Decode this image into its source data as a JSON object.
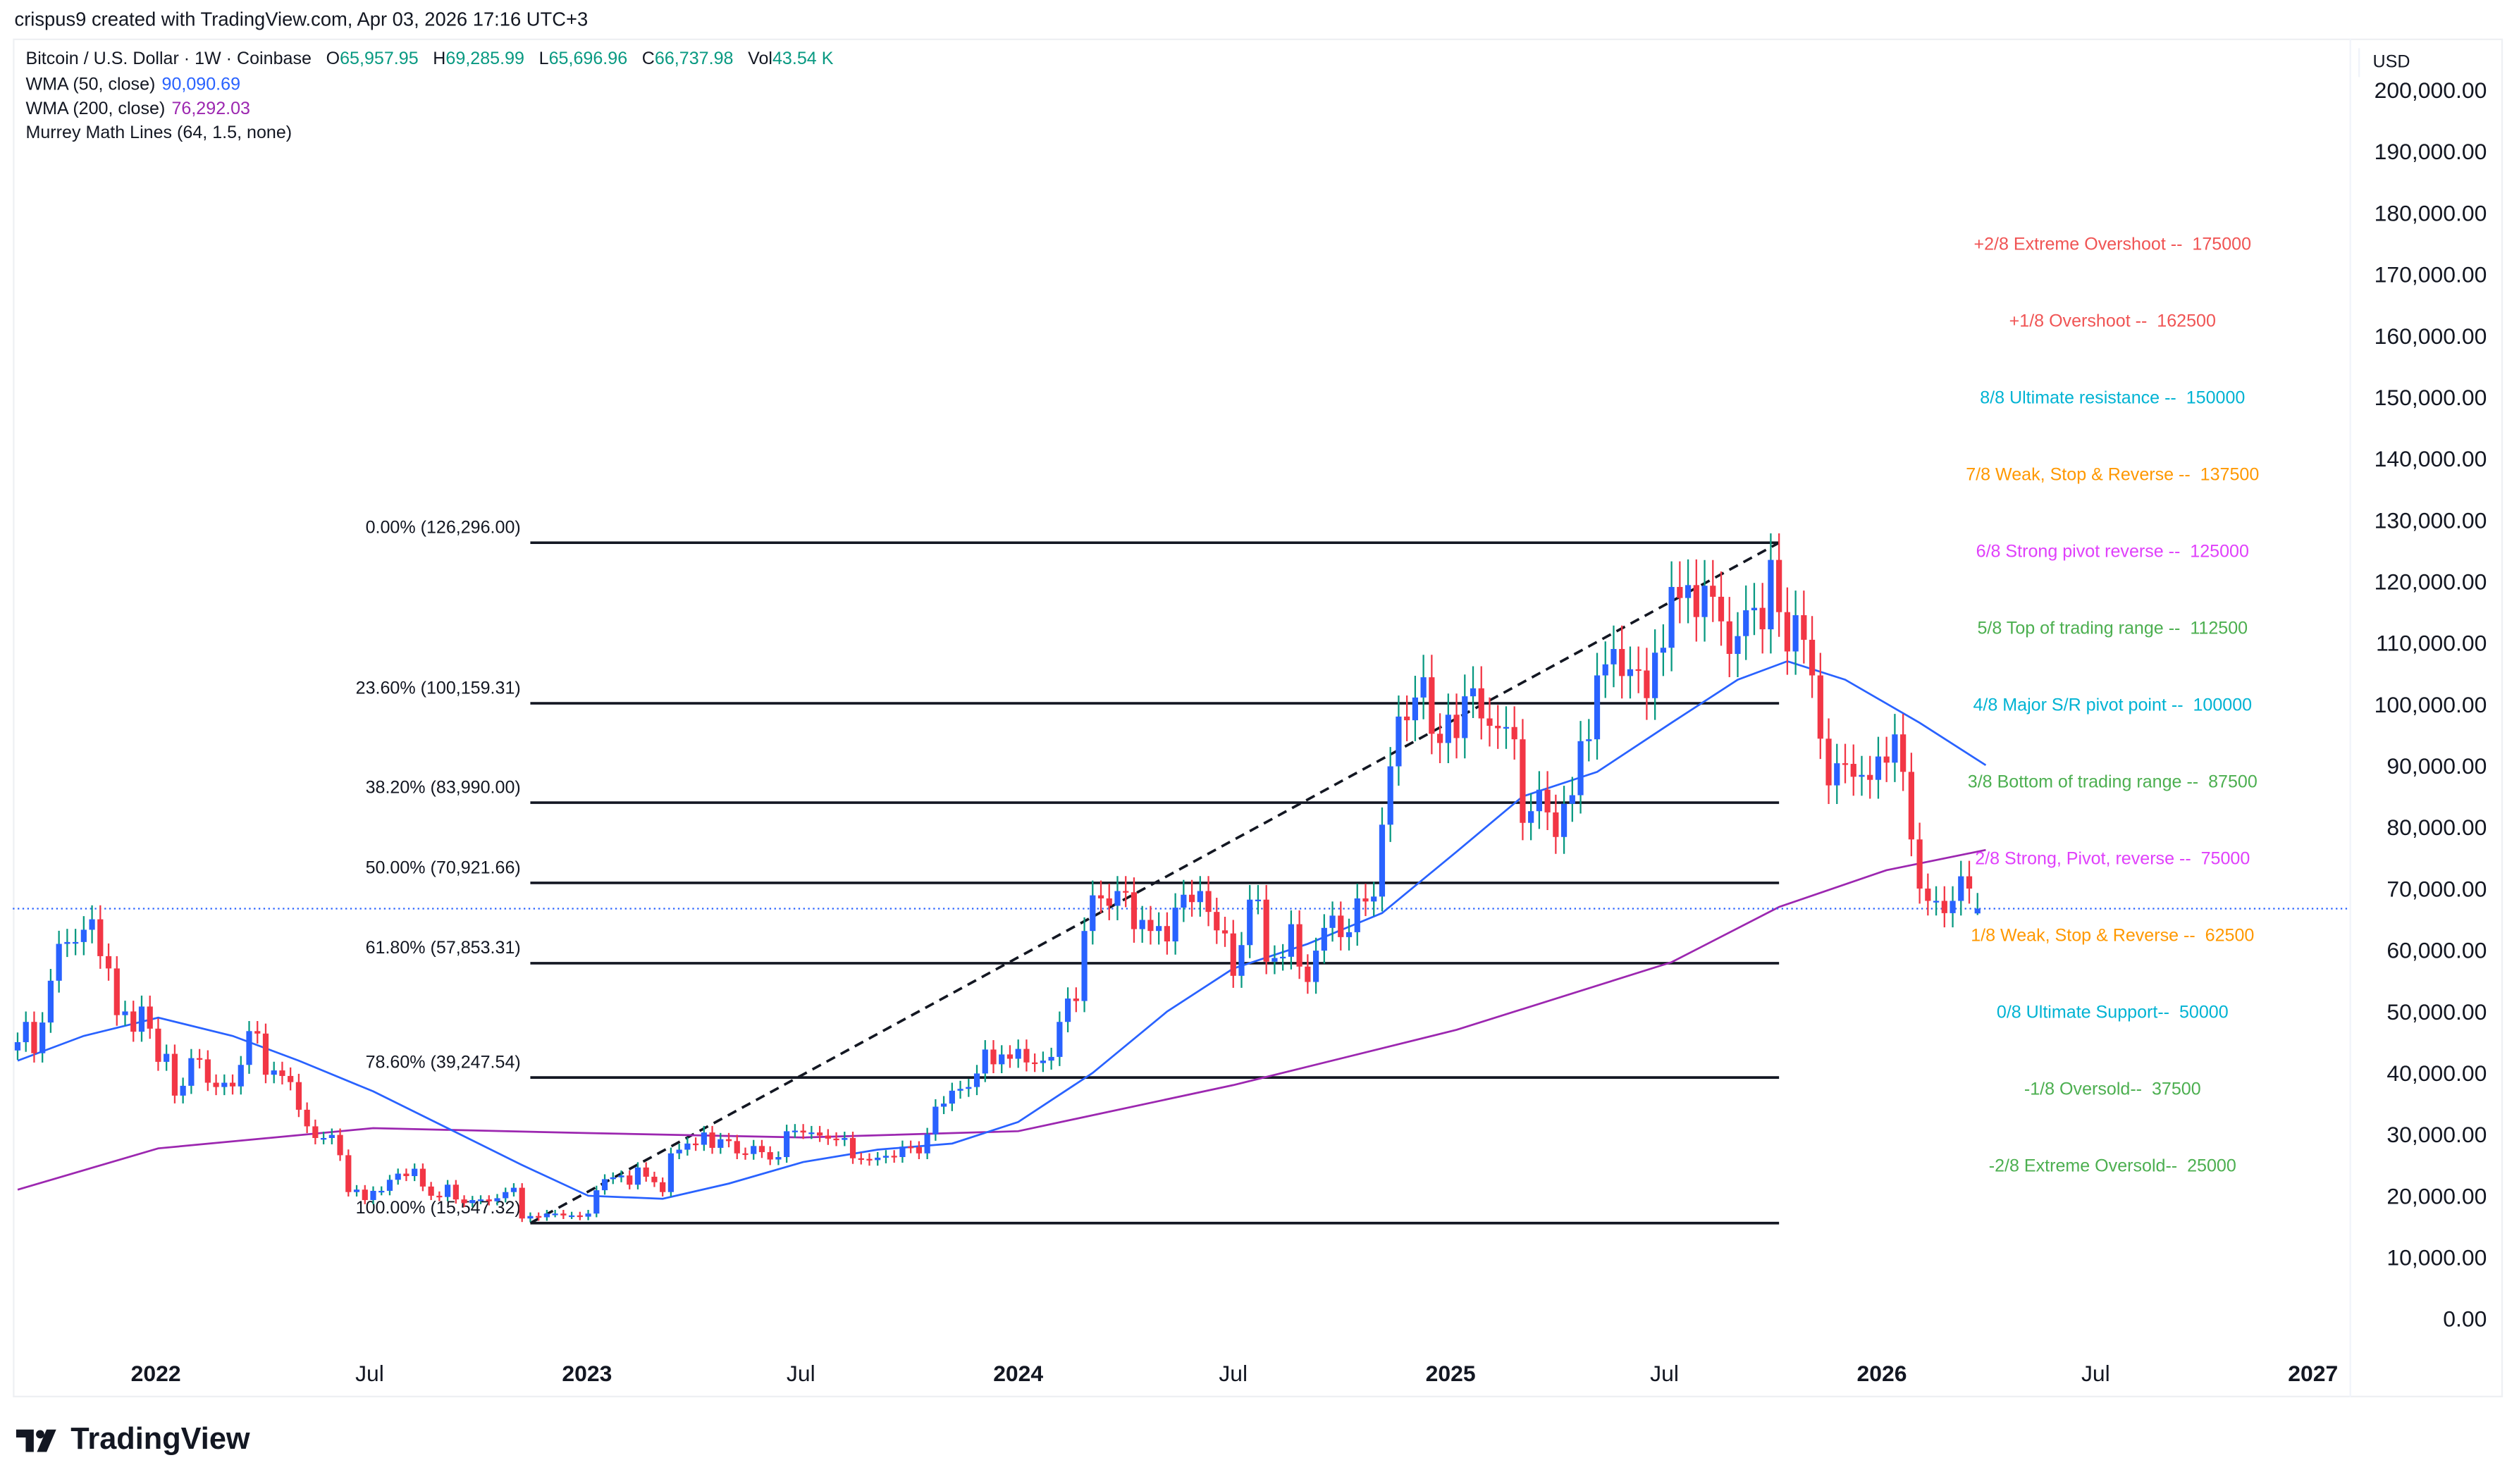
{
  "credit": "crispus9 created with TradingView.com, Apr 03, 2026 17:16 UTC+3",
  "legend": {
    "symbol": "Bitcoin / U.S. Dollar · 1W · Coinbase",
    "open_label": "O",
    "open": "65,957.95",
    "high_label": "H",
    "high": "69,285.99",
    "low_label": "L",
    "low": "65,696.96",
    "close_label": "C",
    "close": "66,737.98",
    "vol_label": "Vol",
    "vol": "43.54 K",
    "wma50_name": "WMA (50, close)",
    "wma50_value": "90,090.69",
    "wma200_name": "WMA (200, close)",
    "wma200_value": "76,292.03",
    "murrey_name": "Murrey Math Lines (64, 1.5, none)"
  },
  "currency": "USD",
  "logo_text": "TradingView",
  "colors": {
    "up": "#2962ff",
    "up_wick": "#089981",
    "down": "#f23645",
    "wma50": "#2962ff",
    "wma200": "#9c27b0",
    "price_line": "#2962ff"
  },
  "chart_data": {
    "type": "candlestick",
    "interval": "1W",
    "ylim": [
      0,
      200000
    ],
    "y_ticks": [
      "200,000.00",
      "190,000.00",
      "180,000.00",
      "170,000.00",
      "160,000.00",
      "150,000.00",
      "140,000.00",
      "130,000.00",
      "120,000.00",
      "110,000.00",
      "100,000.00",
      "90,000.00",
      "80,000.00",
      "70,000.00",
      "60,000.00",
      "50,000.00",
      "40,000.00",
      "30,000.00",
      "20,000.00",
      "10,000.00",
      "0.00"
    ],
    "x_ticks": [
      {
        "label": "2022",
        "date": "2022-01-01",
        "year": true
      },
      {
        "label": "Jul",
        "date": "2022-07-01"
      },
      {
        "label": "2023",
        "date": "2023-01-01",
        "year": true
      },
      {
        "label": "Jul",
        "date": "2023-07-01"
      },
      {
        "label": "2024",
        "date": "2024-01-01",
        "year": true
      },
      {
        "label": "Jul",
        "date": "2024-07-01"
      },
      {
        "label": "2025",
        "date": "2025-01-01",
        "year": true
      },
      {
        "label": "Jul",
        "date": "2025-07-01"
      },
      {
        "label": "2026",
        "date": "2026-01-01",
        "year": true
      },
      {
        "label": "Jul",
        "date": "2026-07-01"
      },
      {
        "label": "2027",
        "date": "2027-01-01",
        "year": true
      }
    ],
    "first_week": "2021-09-06",
    "weekly_close": [
      45000,
      48300,
      43200,
      48200,
      55000,
      61000,
      61300,
      61300,
      63300,
      65000,
      59000,
      57000,
      49400,
      50000,
      46700,
      50800,
      47200,
      41800,
      43100,
      36300,
      37900,
      42400,
      42200,
      38400,
      37700,
      38400,
      37800,
      41300,
      46800,
      46400,
      39700,
      40400,
      39500,
      38500,
      34000,
      31300,
      29400,
      29400,
      29900,
      26600,
      20600,
      21000,
      19300,
      20800,
      20800,
      22600,
      23600,
      23200,
      24400,
      21500,
      20000,
      19800,
      21800,
      19400,
      18800,
      19300,
      19400,
      19100,
      19600,
      20600,
      21300,
      16300,
      16700,
      16500,
      17100,
      17100,
      16800,
      16800,
      16600,
      17100,
      20900,
      22700,
      23000,
      23300,
      21800,
      24600,
      23100,
      22200,
      20600,
      26900,
      27500,
      28500,
      28300,
      30300,
      27800,
      29200,
      28900,
      26900,
      26800,
      28100,
      27100,
      25900,
      26300,
      30500,
      30600,
      30300,
      30300,
      29800,
      29300,
      29100,
      29400,
      26100,
      26000,
      25800,
      26200,
      26500,
      26300,
      28000,
      27900,
      26900,
      30000,
      34500,
      35000,
      37100,
      37400,
      37700,
      39900,
      43800,
      41400,
      43000,
      42300,
      43900,
      41700,
      41600,
      42000,
      42600,
      48300,
      52100,
      51700,
      63100,
      68900,
      68400,
      67200,
      69600,
      69400,
      63400,
      64900,
      63100,
      63900,
      61400,
      66900,
      69000,
      67800,
      69600,
      66200,
      63200,
      62700,
      55800,
      60800,
      68200,
      68200,
      58100,
      58700,
      58900,
      64200,
      57300,
      54800,
      59900,
      63600,
      65600,
      62100,
      62900,
      68400,
      67900,
      68700,
      80400,
      89900,
      98000,
      97400,
      101100,
      104400,
      95200,
      93700,
      98300,
      94500,
      101300,
      102600,
      97700,
      96500,
      96100,
      96300,
      94300,
      80700,
      82600,
      86100,
      82400,
      78400,
      83800,
      85200,
      94000,
      94300,
      104700,
      106500,
      109000,
      104600,
      105700,
      105500,
      101000,
      108400,
      109200,
      119100,
      117300,
      119400,
      114200,
      119300,
      117500,
      113500,
      108200,
      111100,
      115300,
      115700,
      112200,
      123500,
      115000,
      108600,
      114500,
      110500,
      104700,
      94400,
      86800,
      90400,
      90300,
      88200,
      88500,
      87700,
      91500,
      90500,
      95100,
      89000,
      78000,
      70000,
      68000,
      68000,
      66000,
      68000,
      72000,
      70000,
      65960
    ],
    "last_candle": {
      "open": 65957.95,
      "high": 69285.99,
      "low": 65696.96,
      "close": 66737.98
    },
    "wma50": [
      [
        "2021-09-06",
        42000
      ],
      [
        "2021-11-01",
        46000
      ],
      [
        "2022-01-03",
        49000
      ],
      [
        "2022-03-07",
        46000
      ],
      [
        "2022-05-02",
        42000
      ],
      [
        "2022-07-04",
        37000
      ],
      [
        "2022-09-05",
        31000
      ],
      [
        "2022-11-07",
        25000
      ],
      [
        "2023-01-02",
        20000
      ],
      [
        "2023-03-06",
        19500
      ],
      [
        "2023-05-01",
        22000
      ],
      [
        "2023-07-03",
        25500
      ],
      [
        "2023-09-04",
        27500
      ],
      [
        "2023-11-06",
        28500
      ],
      [
        "2024-01-01",
        32000
      ],
      [
        "2024-03-04",
        40000
      ],
      [
        "2024-05-06",
        50000
      ],
      [
        "2024-07-01",
        57000
      ],
      [
        "2024-09-02",
        61000
      ],
      [
        "2024-11-04",
        66000
      ],
      [
        "2025-01-06",
        76000
      ],
      [
        "2025-03-03",
        85000
      ],
      [
        "2025-05-05",
        89000
      ],
      [
        "2025-07-07",
        97000
      ],
      [
        "2025-09-01",
        104000
      ],
      [
        "2025-10-13",
        107000
      ],
      [
        "2025-12-01",
        104000
      ],
      [
        "2026-02-02",
        97000
      ],
      [
        "2026-03-30",
        90090.69
      ]
    ],
    "wma200": [
      [
        "2021-09-06",
        21000
      ],
      [
        "2022-01-03",
        27700
      ],
      [
        "2022-07-04",
        31000
      ],
      [
        "2023-01-02",
        30200
      ],
      [
        "2023-07-03",
        29500
      ],
      [
        "2024-01-01",
        30500
      ],
      [
        "2024-07-01",
        38000
      ],
      [
        "2025-01-06",
        47000
      ],
      [
        "2025-07-07",
        58000
      ],
      [
        "2025-10-06",
        67000
      ],
      [
        "2026-01-05",
        73000
      ],
      [
        "2026-03-30",
        76292.03
      ]
    ],
    "fib_retracement": {
      "start": "2022-11-14",
      "end": "2025-10-06",
      "trend_from": 15547.32,
      "trend_to": 126296.0,
      "levels": [
        {
          "label": "0.00% (126,296.00)",
          "value": 126296.0
        },
        {
          "label": "23.60% (100,159.31)",
          "value": 100159.31
        },
        {
          "label": "38.20% (83,990.00)",
          "value": 83990.0
        },
        {
          "label": "50.00% (70,921.66)",
          "value": 70921.66
        },
        {
          "label": "61.80% (57,853.31)",
          "value": 57853.31
        },
        {
          "label": "78.60% (39,247.54)",
          "value": 39247.54
        },
        {
          "label": "100.00% (15,547.32)",
          "value": 15547.32
        }
      ]
    },
    "murrey_math": [
      {
        "label": "+2/8 Extreme Overshoot --  175000",
        "value": 175000,
        "color": "#f05454"
      },
      {
        "label": "+1/8 Overshoot --  162500",
        "value": 162500,
        "color": "#f05454"
      },
      {
        "label": "8/8 Ultimate resistance --  150000",
        "value": 150000,
        "color": "#00b3d3"
      },
      {
        "label": "7/8 Weak, Stop & Reverse --  137500",
        "value": 137500,
        "color": "#ff9800"
      },
      {
        "label": "6/8 Strong pivot reverse --  125000",
        "value": 125000,
        "color": "#e040fb"
      },
      {
        "label": "5/8 Top of trading range --  112500",
        "value": 112500,
        "color": "#4caf50"
      },
      {
        "label": "4/8 Major S/R pivot point --  100000",
        "value": 100000,
        "color": "#00b3d3"
      },
      {
        "label": "3/8 Bottom of trading range --  87500",
        "value": 87500,
        "color": "#4caf50"
      },
      {
        "label": "2/8 Strong, Pivot, reverse --  75000",
        "value": 75000,
        "color": "#e040fb"
      },
      {
        "label": "1/8 Weak, Stop & Reverse --  62500",
        "value": 62500,
        "color": "#ff9800"
      },
      {
        "label": "0/8 Ultimate Support--  50000",
        "value": 50000,
        "color": "#00b3d3"
      },
      {
        "label": "-1/8 Oversold--  37500",
        "value": 37500,
        "color": "#4caf50"
      },
      {
        "label": "-2/8 Extreme Oversold--  25000",
        "value": 25000,
        "color": "#4caf50"
      }
    ],
    "last_price": 66737.98
  }
}
